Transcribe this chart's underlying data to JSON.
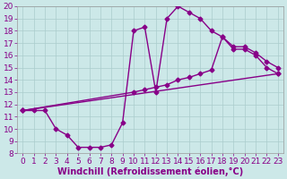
{
  "background_color": "#cce8e8",
  "grid_color": "#aacccc",
  "line_color": "#880088",
  "xlabel": "Windchill (Refroidissement éolien,°C)",
  "xlim": [
    -0.5,
    23.5
  ],
  "ylim": [
    8,
    20
  ],
  "xticks": [
    0,
    1,
    2,
    3,
    4,
    5,
    6,
    7,
    8,
    9,
    10,
    11,
    12,
    13,
    14,
    15,
    16,
    17,
    18,
    19,
    20,
    21,
    22,
    23
  ],
  "yticks": [
    8,
    9,
    10,
    11,
    12,
    13,
    14,
    15,
    16,
    17,
    18,
    19,
    20
  ],
  "curve1_x": [
    0,
    1,
    2,
    3,
    4,
    5,
    6,
    7,
    8,
    9,
    10,
    11,
    12,
    13,
    14,
    15,
    16,
    17,
    18,
    19,
    20,
    21,
    22,
    23
  ],
  "curve1_y": [
    11.5,
    11.5,
    11.5,
    10.0,
    9.5,
    8.5,
    8.5,
    8.5,
    8.7,
    10.5,
    18.0,
    18.3,
    13.0,
    19.0,
    20.0,
    19.5,
    19.0,
    18.0,
    17.5,
    16.5,
    16.5,
    16.0,
    15.0,
    14.5
  ],
  "curve2_x": [
    0,
    10,
    11,
    12,
    13,
    14,
    15,
    16,
    17,
    18,
    19,
    20,
    21,
    22,
    23
  ],
  "curve2_y": [
    11.5,
    13.0,
    13.2,
    13.4,
    13.6,
    14.0,
    14.2,
    14.5,
    14.8,
    17.5,
    16.7,
    16.7,
    16.2,
    15.5,
    15.0
  ],
  "curve3_x": [
    0,
    23
  ],
  "curve3_y": [
    11.5,
    14.5
  ],
  "marker": "D",
  "marker_size": 2.5,
  "linewidth": 1.0,
  "font_size": 6.5,
  "label_fontsize": 7
}
